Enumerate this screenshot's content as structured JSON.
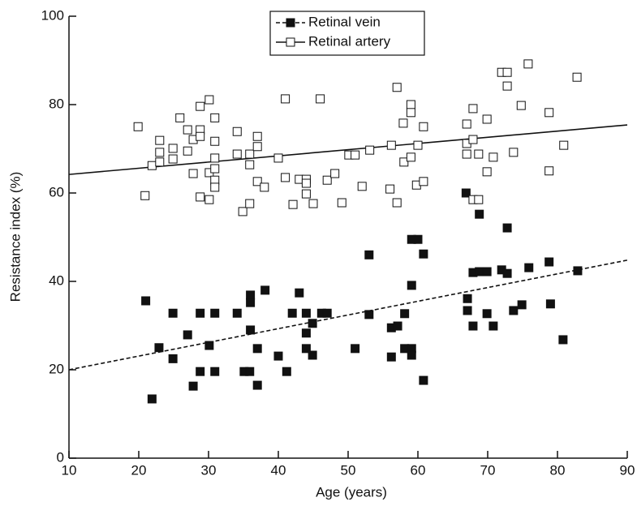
{
  "chart_data": {
    "type": "scatter",
    "xlabel": "Age (years)",
    "ylabel": "Resistance index (%)",
    "xlim": [
      10,
      90
    ],
    "ylim": [
      0,
      100
    ],
    "xticks": [
      10,
      20,
      30,
      40,
      50,
      60,
      70,
      80,
      90
    ],
    "yticks": [
      0,
      20,
      40,
      60,
      80,
      100
    ],
    "series": [
      {
        "name": "Retinal vein",
        "color": "#111111",
        "marker": "filled",
        "line": "dashed",
        "x": [
          21,
          21.9,
          22.9,
          24.9,
          24.9,
          27,
          27.8,
          28.8,
          28.8,
          30.1,
          30.9,
          30.9,
          34.1,
          35.1,
          35.9,
          36,
          36,
          36,
          37,
          37,
          38.1,
          40,
          41.2,
          42,
          43,
          44,
          44,
          44,
          44.9,
          44.9,
          46.2,
          47,
          51,
          53,
          53,
          56.2,
          56.2,
          57.1,
          58.1,
          58.1,
          59.1,
          59.1,
          59.1,
          59.1,
          60,
          60.8,
          60.8,
          66.9,
          67.1,
          67.1,
          67.9,
          67.9,
          68.8,
          68.8,
          69.9,
          69.9,
          70.8,
          72,
          72.8,
          72.8,
          73.7,
          74.9,
          75.9,
          78.8,
          79,
          80.8,
          82.9
        ],
        "values": [
          35.6,
          13.4,
          25,
          32.8,
          22.5,
          27.9,
          16.3,
          32.8,
          19.6,
          25.5,
          32.8,
          19.6,
          32.8,
          19.6,
          19.6,
          36.9,
          35.2,
          29,
          24.8,
          16.5,
          38,
          23.1,
          19.6,
          32.8,
          37.4,
          32.8,
          28.3,
          24.8,
          30.5,
          23.3,
          32.8,
          32.8,
          24.8,
          46,
          32.5,
          29.5,
          22.9,
          29.9,
          24.8,
          32.7,
          39.1,
          49.5,
          24.8,
          23.3,
          49.5,
          46.2,
          17.6,
          60,
          36.1,
          33.4,
          42,
          29.9,
          55.2,
          42.2,
          42.2,
          32.7,
          29.9,
          42.6,
          52.1,
          41.8,
          33.4,
          34.7,
          43.1,
          44.4,
          34.9,
          26.8,
          42.4
        ],
        "fit": {
          "x": [
            10,
            90
          ],
          "values": [
            20,
            44.8
          ]
        }
      },
      {
        "name": "Retinal artery",
        "color": "#111111",
        "marker": "open",
        "line": "solid",
        "x": [
          19.9,
          20.9,
          21.9,
          23,
          23,
          23,
          24.9,
          24.9,
          25.9,
          27,
          27,
          27.8,
          27.8,
          28.8,
          28.8,
          28.8,
          28.8,
          30.1,
          30.1,
          30.1,
          30.9,
          30.9,
          30.9,
          30.9,
          30.9,
          30.9,
          34.1,
          34.1,
          34.9,
          35.9,
          35.9,
          35.9,
          37,
          37,
          37,
          38,
          40,
          41,
          41,
          42.1,
          43,
          44,
          44,
          44,
          45,
          46,
          47,
          48.1,
          49.1,
          50.1,
          51,
          52,
          53.1,
          56,
          56.2,
          57,
          57,
          57.9,
          58,
          59,
          59,
          59,
          59.8,
          60,
          60.8,
          60.8,
          67,
          67,
          67,
          67.9,
          67.9,
          67.9,
          68.7,
          68.7,
          69.9,
          69.9,
          70.8,
          72,
          72.8,
          72.8,
          73.7,
          74.8,
          75.8,
          78.8,
          78.8,
          80.9,
          82.8
        ],
        "values": [
          75,
          59.4,
          66.2,
          71.9,
          69.2,
          67,
          70.1,
          67.7,
          77,
          74.3,
          69.5,
          72.1,
          64.4,
          79.6,
          74.3,
          72.8,
          59.1,
          81.1,
          64.6,
          58.5,
          77,
          71.7,
          67.9,
          65.5,
          62.9,
          61.3,
          73.9,
          68.8,
          55.8,
          68.8,
          66.4,
          57.6,
          72.8,
          70.5,
          62.6,
          61.3,
          67.9,
          81.3,
          63.5,
          57.4,
          63.1,
          63.1,
          62.2,
          59.8,
          57.6,
          81.3,
          62.9,
          64.4,
          57.8,
          68.6,
          68.6,
          61.5,
          69.7,
          60.9,
          70.8,
          83.9,
          57.8,
          75.8,
          67,
          80,
          78.2,
          68.1,
          61.8,
          70.8,
          75,
          62.6,
          75.6,
          71.2,
          68.8,
          79.1,
          72.1,
          58.5,
          68.8,
          58.5,
          76.7,
          64.8,
          68.1,
          87.3,
          87.3,
          84.2,
          69.2,
          79.8,
          89.2,
          78.2,
          65,
          70.8,
          86.2
        ],
        "fit": {
          "x": [
            10,
            90
          ],
          "values": [
            64.2,
            75.4
          ]
        }
      }
    ]
  }
}
